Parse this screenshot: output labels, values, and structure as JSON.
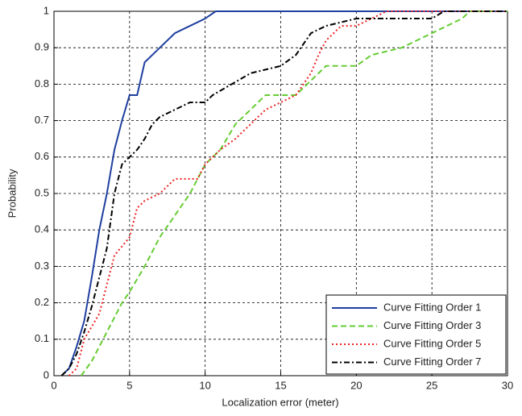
{
  "chart_data": {
    "type": "line",
    "x_label": "Localization error (meter)",
    "y_label": "Probability",
    "xlim": [
      0,
      30
    ],
    "ylim": [
      0,
      1
    ],
    "xticks": [
      0,
      5,
      10,
      15,
      20,
      25,
      30
    ],
    "yticks": [
      0,
      0.1,
      0.2,
      0.3,
      0.4,
      0.5,
      0.6,
      0.7,
      0.8,
      0.9,
      1
    ],
    "grid": true,
    "legend": "lower right",
    "series": [
      {
        "name": "Curve Fitting Order 1",
        "color": "#1f3f9f",
        "dash": "solid",
        "x": [
          0.5,
          1,
          1.5,
          2,
          2.5,
          3,
          3.5,
          4,
          4.5,
          5,
          5.5,
          6,
          7,
          8,
          9,
          10,
          10.7,
          30
        ],
        "values": [
          0,
          0.02,
          0.08,
          0.15,
          0.27,
          0.4,
          0.5,
          0.62,
          0.7,
          0.77,
          0.77,
          0.86,
          0.9,
          0.94,
          0.96,
          0.98,
          1,
          1
        ]
      },
      {
        "name": "Curve Fitting Order 3",
        "color": "#66cc33",
        "dash": "dashed",
        "x": [
          1.8,
          2.5,
          3.5,
          4.5,
          5,
          6,
          7,
          8,
          9,
          10,
          11,
          12,
          13,
          14,
          16,
          17,
          18,
          20,
          21,
          23,
          24,
          25,
          26,
          27,
          27.5,
          30
        ],
        "values": [
          0,
          0.04,
          0.12,
          0.2,
          0.23,
          0.3,
          0.38,
          0.44,
          0.5,
          0.58,
          0.62,
          0.69,
          0.73,
          0.77,
          0.77,
          0.81,
          0.85,
          0.85,
          0.88,
          0.9,
          0.92,
          0.94,
          0.96,
          0.98,
          1,
          1
        ]
      },
      {
        "name": "Curve Fitting Order 5",
        "color": "#ee2222",
        "dash": "dotted",
        "x": [
          1,
          1.5,
          2,
          3,
          3.5,
          4,
          5,
          5.5,
          6,
          7,
          8,
          9.5,
          10,
          11,
          12,
          13,
          14,
          15,
          16,
          17,
          17.5,
          18,
          19,
          20,
          21,
          22,
          30
        ],
        "values": [
          0,
          0.02,
          0.1,
          0.17,
          0.25,
          0.33,
          0.38,
          0.46,
          0.48,
          0.5,
          0.54,
          0.54,
          0.58,
          0.62,
          0.65,
          0.69,
          0.73,
          0.75,
          0.77,
          0.83,
          0.88,
          0.92,
          0.96,
          0.96,
          0.98,
          1,
          1
        ]
      },
      {
        "name": "Curve Fitting Order 7",
        "color": "#000000",
        "dash": "dashdot",
        "x": [
          0.5,
          1,
          1.5,
          2,
          2.5,
          3,
          3.5,
          4,
          4.5,
          5.5,
          6,
          6.5,
          7,
          8,
          9,
          10,
          10.5,
          13,
          15,
          16,
          17,
          18,
          20,
          25,
          25.8,
          30
        ],
        "values": [
          0,
          0.02,
          0.06,
          0.12,
          0.19,
          0.27,
          0.35,
          0.5,
          0.58,
          0.62,
          0.65,
          0.69,
          0.71,
          0.73,
          0.75,
          0.75,
          0.77,
          0.83,
          0.85,
          0.88,
          0.94,
          0.96,
          0.98,
          0.98,
          1,
          1
        ]
      }
    ]
  }
}
